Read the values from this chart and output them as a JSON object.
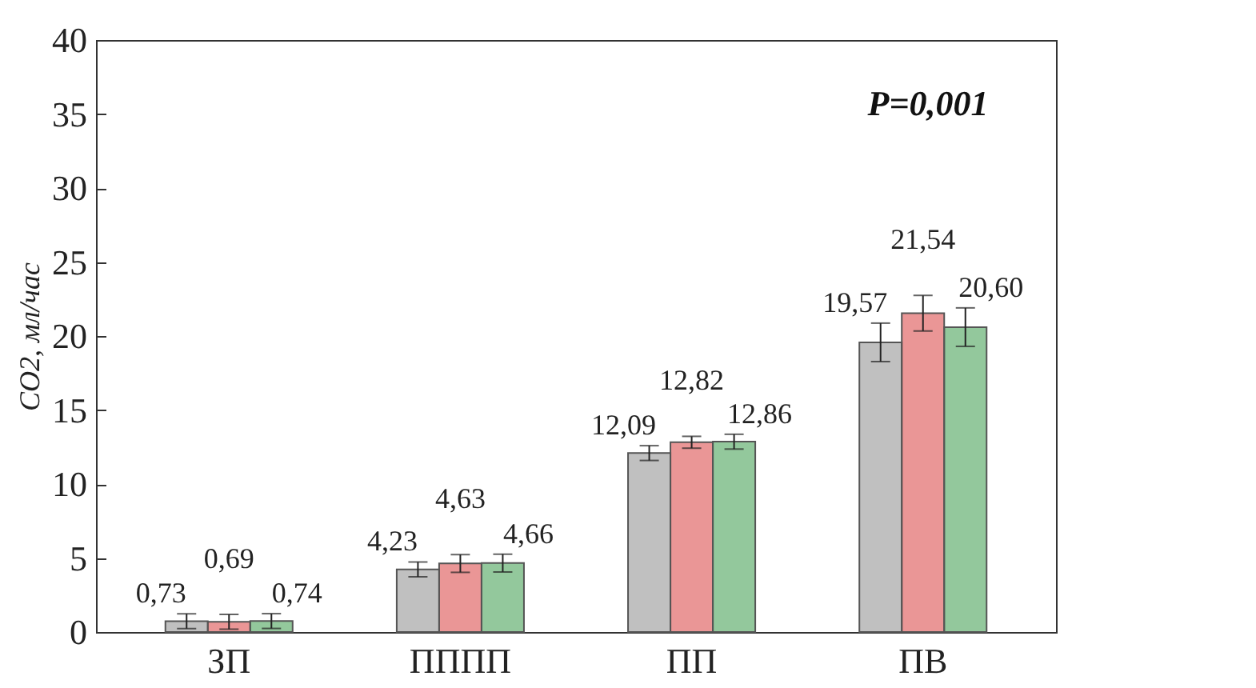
{
  "chart_data": {
    "type": "bar",
    "ylabel": "CO2, мл/час",
    "categories": [
      "ЗП",
      "ПППП",
      "ПП",
      "ПВ"
    ],
    "series": [
      {
        "color": "#8c8c8c",
        "values": [
          0.73,
          4.23,
          12.09,
          19.57
        ],
        "errors": [
          0.5,
          0.5,
          0.5,
          1.3
        ],
        "value_labels": [
          "0,73",
          "4,23",
          "12,09",
          "19,57"
        ]
      },
      {
        "color": "#d94040",
        "values": [
          0.69,
          4.63,
          12.82,
          21.54
        ],
        "errors": [
          0.5,
          0.6,
          0.4,
          1.2
        ],
        "value_labels": [
          "0,69",
          "4,63",
          "12,82",
          "21,54"
        ]
      },
      {
        "color": "#3a9a4a",
        "values": [
          0.74,
          4.66,
          12.86,
          20.6
        ],
        "errors": [
          0.5,
          0.6,
          0.5,
          1.3
        ],
        "value_labels": [
          "0,74",
          "4,66",
          "12,86",
          "20,60"
        ]
      }
    ],
    "ylim": [
      0,
      40
    ],
    "yticks": [
      0,
      5,
      10,
      15,
      20,
      25,
      30,
      35,
      40
    ],
    "annotations": [
      "P=0,001"
    ]
  }
}
